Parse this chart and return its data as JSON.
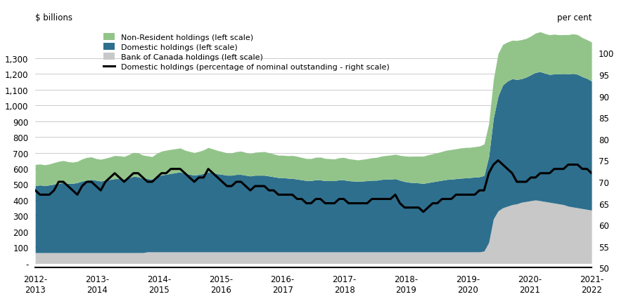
{
  "ylabel_left": "$ billions",
  "ylabel_right": "per cent",
  "ylim_left": [
    -30,
    1470
  ],
  "ylim_right": [
    50,
    105
  ],
  "yticks_left": [
    0,
    100,
    200,
    300,
    400,
    500,
    600,
    700,
    800,
    900,
    1000,
    1100,
    1200,
    1300
  ],
  "ytick_labels_left": [
    "-",
    "100",
    "200",
    "300",
    "400",
    "500",
    "600",
    "700",
    "800",
    "900",
    "1,000",
    "1,100",
    "1,200",
    "1,300"
  ],
  "yticks_right": [
    50,
    55,
    60,
    65,
    70,
    75,
    80,
    85,
    90,
    95,
    100
  ],
  "x_labels": [
    "2012-\n2013",
    "2013-\n2014",
    "2014-\n2015",
    "2015-\n2016",
    "2016-\n2017",
    "2017-\n2018",
    "2018-\n2019",
    "2019-\n2020",
    "2020-\n2021",
    "2021-\n2022"
  ],
  "color_nonresident": "#92C48A",
  "color_domestic": "#2E6F8E",
  "color_boc": "#C8C8C8",
  "color_line": "#000000",
  "n_points": 120,
  "boc_holdings": [
    65,
    65,
    65,
    65,
    65,
    65,
    65,
    65,
    65,
    65,
    65,
    65,
    65,
    65,
    65,
    65,
    65,
    65,
    65,
    65,
    65,
    65,
    65,
    65,
    70,
    70,
    70,
    70,
    70,
    70,
    70,
    70,
    70,
    70,
    70,
    70,
    70,
    70,
    70,
    70,
    70,
    70,
    70,
    70,
    70,
    70,
    70,
    70,
    70,
    70,
    70,
    70,
    70,
    70,
    70,
    70,
    70,
    70,
    70,
    70,
    70,
    70,
    70,
    70,
    70,
    70,
    70,
    70,
    70,
    70,
    70,
    70,
    70,
    70,
    70,
    70,
    70,
    70,
    70,
    70,
    70,
    70,
    70,
    70,
    70,
    70,
    70,
    70,
    70,
    70,
    70,
    70,
    70,
    70,
    70,
    70,
    75,
    130,
    280,
    330,
    350,
    360,
    370,
    375,
    385,
    390,
    395,
    400,
    395,
    390,
    385,
    380,
    375,
    370,
    360,
    355,
    350,
    345,
    340,
    335
  ],
  "domestic_holdings": [
    425,
    430,
    425,
    430,
    435,
    440,
    445,
    440,
    440,
    445,
    455,
    460,
    465,
    460,
    455,
    460,
    465,
    470,
    470,
    468,
    475,
    485,
    482,
    472,
    465,
    462,
    478,
    488,
    493,
    498,
    503,
    508,
    498,
    493,
    488,
    492,
    498,
    508,
    502,
    496,
    492,
    487,
    487,
    492,
    492,
    487,
    482,
    487,
    487,
    487,
    482,
    477,
    472,
    472,
    468,
    467,
    462,
    458,
    453,
    453,
    458,
    457,
    452,
    452,
    452,
    458,
    457,
    452,
    450,
    448,
    450,
    452,
    455,
    455,
    460,
    462,
    462,
    465,
    455,
    447,
    442,
    440,
    438,
    435,
    440,
    445,
    450,
    455,
    460,
    462,
    465,
    468,
    470,
    472,
    475,
    477,
    480,
    545,
    640,
    730,
    780,
    795,
    800,
    790,
    785,
    790,
    800,
    810,
    820,
    815,
    812,
    820,
    825,
    832,
    840,
    848,
    848,
    838,
    832,
    820
  ],
  "nonresident_holdings": [
    135,
    133,
    133,
    133,
    137,
    140,
    140,
    138,
    135,
    135,
    140,
    145,
    143,
    138,
    138,
    140,
    143,
    147,
    145,
    143,
    148,
    152,
    152,
    148,
    145,
    143,
    148,
    152,
    153,
    153,
    152,
    152,
    148,
    145,
    143,
    146,
    150,
    155,
    152,
    148,
    145,
    142,
    142,
    145,
    148,
    145,
    143,
    146,
    148,
    150,
    148,
    145,
    142,
    142,
    143,
    145,
    145,
    142,
    140,
    140,
    143,
    145,
    142,
    140,
    138,
    140,
    143,
    140,
    138,
    136,
    138,
    140,
    143,
    145,
    148,
    150,
    153,
    155,
    158,
    162,
    165,
    168,
    170,
    173,
    176,
    178,
    180,
    183,
    186,
    188,
    190,
    192,
    193,
    192,
    193,
    195,
    200,
    210,
    245,
    270,
    258,
    248,
    244,
    248,
    248,
    246,
    246,
    250,
    253,
    252,
    252,
    253,
    249,
    248,
    250,
    252,
    252,
    248,
    246,
    248
  ],
  "pct_domestic": [
    68,
    67,
    67,
    67,
    68,
    70,
    70,
    69,
    68,
    67,
    69,
    70,
    70,
    69,
    68,
    70,
    71,
    72,
    71,
    70,
    71,
    72,
    72,
    71,
    70,
    70,
    71,
    72,
    72,
    73,
    73,
    73,
    72,
    71,
    70,
    71,
    71,
    73,
    72,
    71,
    70,
    69,
    69,
    70,
    70,
    69,
    68,
    69,
    69,
    69,
    68,
    68,
    67,
    67,
    67,
    67,
    66,
    66,
    65,
    65,
    66,
    66,
    65,
    65,
    65,
    66,
    66,
    65,
    65,
    65,
    65,
    65,
    66,
    66,
    66,
    66,
    66,
    67,
    65,
    64,
    64,
    64,
    64,
    63,
    64,
    65,
    65,
    66,
    66,
    66,
    67,
    67,
    67,
    67,
    67,
    68,
    68,
    72,
    74,
    75,
    74,
    73,
    72,
    70,
    70,
    70,
    71,
    71,
    72,
    72,
    72,
    73,
    73,
    73,
    74,
    74,
    74,
    73,
    73,
    72
  ]
}
